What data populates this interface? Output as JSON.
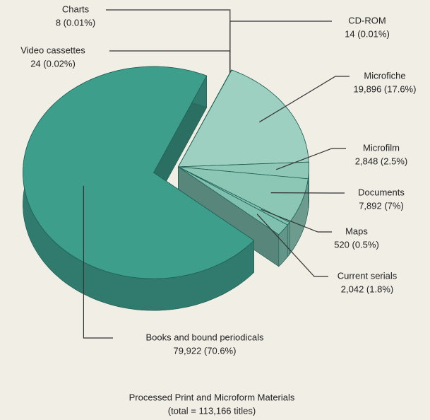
{
  "chart_data": {
    "type": "pie",
    "title": "Processed Print and Microform Materials",
    "subtitle": "(total = 113,166 titles)",
    "categories": [
      "Video cassettes",
      "Charts",
      "CD-ROM",
      "Microfiche",
      "Microfilm",
      "Documents",
      "Maps",
      "Current serials",
      "Books and bound periodicals"
    ],
    "values": [
      24,
      8,
      14,
      19896,
      2848,
      7892,
      520,
      2042,
      79922
    ],
    "value_labels": [
      "24 (0.02%)",
      "8 (0.01%)",
      "14 (0.01%)",
      "19,896 (17.6%)",
      "2,848 (2.5%)",
      "7,892 (7%)",
      "520 (0.5%)",
      "2,042 (1.8%)",
      "79,922 (70.6%)"
    ],
    "colors": [
      "#7fc0ae",
      "#7fc0ae",
      "#7fc0ae",
      "#9dd0c0",
      "#8fc8b6",
      "#8cc7b5",
      "#7fc0ae",
      "#7fc0ae",
      "#3d9e8c"
    ]
  }
}
